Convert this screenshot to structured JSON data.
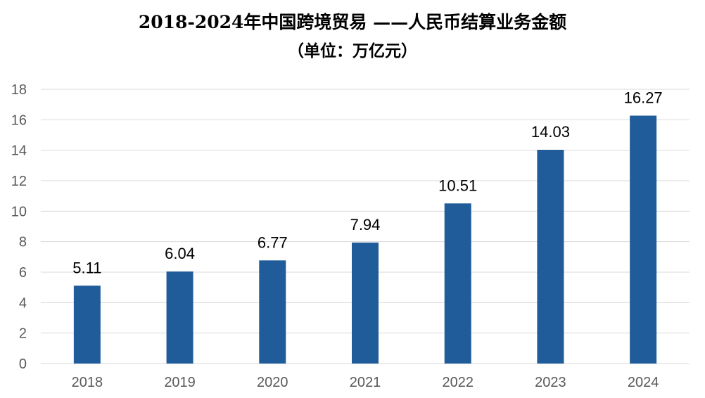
{
  "chart_data": {
    "type": "bar",
    "title": "2018-2024年中国跨境贸易 ——人民币结算业务金额",
    "subtitle": "（单位：万亿元）",
    "categories": [
      "2018",
      "2019",
      "2020",
      "2021",
      "2022",
      "2023",
      "2024"
    ],
    "values": [
      5.11,
      6.04,
      6.77,
      7.94,
      10.51,
      14.03,
      16.27
    ],
    "ylim": [
      0,
      18
    ],
    "yticks": [
      0,
      2,
      4,
      6,
      8,
      10,
      12,
      14,
      16,
      18
    ],
    "grid": true,
    "bar_color": "#1f5c99"
  }
}
